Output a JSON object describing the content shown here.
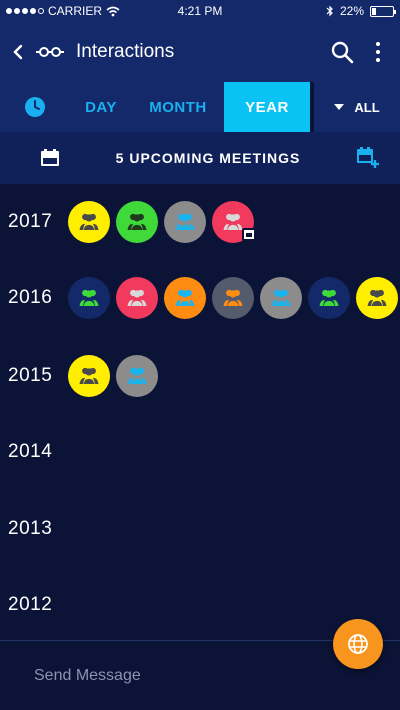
{
  "status_bar": {
    "carrier": "CARRIER",
    "time": "4:21 PM",
    "battery": "22%",
    "battery_level": 0.22
  },
  "app_bar": {
    "title": "Interactions"
  },
  "tabs": {
    "items": [
      {
        "label": "DAY"
      },
      {
        "label": "MONTH"
      },
      {
        "label": "YEAR",
        "selected": true
      }
    ],
    "filter_label": "ALL"
  },
  "meetings": {
    "label": "5 UPCOMING MEETINGS"
  },
  "timeline": [
    {
      "year": "2017",
      "bubbles": [
        {
          "bg": "#ffee00",
          "fg": "#4a4a4a"
        },
        {
          "bg": "#3fd93a",
          "fg": "#1f3a1f"
        },
        {
          "bg": "#8c8c8c",
          "fg": "#19b5f0"
        },
        {
          "bg": "#f23a5e",
          "fg": "#d8d8d8",
          "calendar": true
        }
      ]
    },
    {
      "year": "2016",
      "bubbles": [
        {
          "bg": "#13296a",
          "fg": "#3fd93a"
        },
        {
          "bg": "#f23a5e",
          "fg": "#d8d8d8"
        },
        {
          "bg": "#ff8c12",
          "fg": "#19b5f0"
        },
        {
          "bg": "#545b6c",
          "fg": "#ff8c12"
        },
        {
          "bg": "#8c8c8c",
          "fg": "#19b5f0"
        },
        {
          "bg": "#13296a",
          "fg": "#3fd93a"
        },
        {
          "bg": "#ffee00",
          "fg": "#4a4a4a"
        }
      ]
    },
    {
      "year": "2015",
      "bubbles": [
        {
          "bg": "#ffee00",
          "fg": "#4a4a4a"
        },
        {
          "bg": "#8c8c8c",
          "fg": "#19b5f0"
        }
      ]
    },
    {
      "year": "2014",
      "bubbles": []
    },
    {
      "year": "2013",
      "bubbles": []
    },
    {
      "year": "2012",
      "bubbles": []
    }
  ],
  "compose": {
    "placeholder": "Send Message"
  },
  "colors": {
    "bar": "#13296a",
    "background": "#0b1436",
    "accent": "#0ac3f5",
    "fab": "#f7951e"
  },
  "icons": {
    "back": "chevron-left-icon",
    "logo": "connections-icon",
    "search": "search-icon",
    "more": "more-vertical-icon",
    "clock": "clock-icon",
    "calendar": "calendar-icon",
    "calendar_add": "calendar-add-icon",
    "group": "people-group-icon",
    "fab": "globe-icon"
  }
}
